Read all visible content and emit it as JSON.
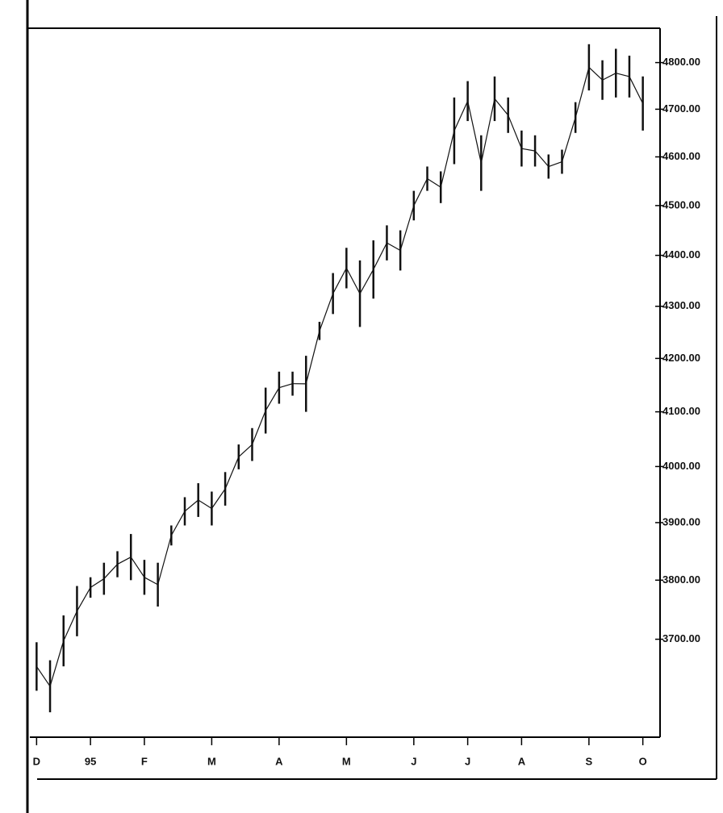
{
  "chart_data": {
    "type": "hilo",
    "color": "#111111",
    "log_scale": true,
    "categories": [
      "D",
      null,
      null,
      null,
      "95",
      null,
      null,
      null,
      "F",
      null,
      null,
      null,
      null,
      "M",
      null,
      null,
      null,
      null,
      "A",
      null,
      null,
      null,
      null,
      "M",
      null,
      null,
      null,
      null,
      "J",
      null,
      null,
      null,
      "J",
      null,
      null,
      null,
      "A",
      null,
      null,
      null,
      null,
      "S",
      null,
      null,
      null,
      "O"
    ],
    "high": [
      3695,
      3665,
      3740,
      3790,
      3805,
      3830,
      3850,
      3880,
      3835,
      3830,
      3895,
      3945,
      3970,
      3955,
      3990,
      4040,
      4070,
      4145,
      4175,
      4175,
      4205,
      4270,
      4365,
      4415,
      4390,
      4430,
      4460,
      4450,
      4530,
      4580,
      4570,
      4725,
      4760,
      4645,
      4770,
      4725,
      4655,
      4645,
      4605,
      4615,
      4715,
      4840,
      4805,
      4830,
      4815,
      4770
    ],
    "low": [
      3615,
      3580,
      3655,
      3705,
      3770,
      3775,
      3805,
      3800,
      3775,
      3755,
      3860,
      3895,
      3910,
      3895,
      3930,
      3995,
      4010,
      4060,
      4115,
      4130,
      4100,
      4235,
      4285,
      4335,
      4260,
      4315,
      4390,
      4370,
      4470,
      4530,
      4505,
      4585,
      4675,
      4530,
      4675,
      4650,
      4580,
      4580,
      4555,
      4565,
      4650,
      4740,
      4720,
      4725,
      4725,
      4655
    ],
    "ylim": [
      3540,
      4875
    ],
    "yticks": [
      {
        "value": 3700,
        "label": "3700.00"
      },
      {
        "value": 3800,
        "label": "3800.00"
      },
      {
        "value": 3900,
        "label": "3900.00"
      },
      {
        "value": 4000,
        "label": "4000.00"
      },
      {
        "value": 4100,
        "label": "4100.00"
      },
      {
        "value": 4200,
        "label": "4200.00"
      },
      {
        "value": 4300,
        "label": "4300.00"
      },
      {
        "value": 4400,
        "label": "4400.00"
      },
      {
        "value": 4500,
        "label": "4500.00"
      },
      {
        "value": 4600,
        "label": "4600.00"
      },
      {
        "value": 4700,
        "label": "4700.00"
      },
      {
        "value": 4800,
        "label": "4800.00"
      }
    ]
  }
}
